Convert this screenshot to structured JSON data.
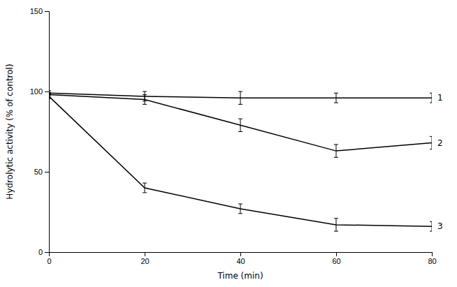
{
  "chart_data": {
    "type": "line",
    "xlabel": "Time (min)",
    "ylabel": "Hydrolytic activity (% of control)",
    "x": [
      0,
      20,
      40,
      60,
      80
    ],
    "xlim": [
      0,
      80
    ],
    "xticks": [
      0,
      20,
      40,
      60,
      80
    ],
    "ylim": [
      0,
      150
    ],
    "yticks": [
      0,
      50,
      100,
      150
    ],
    "color": "#000000",
    "series": [
      {
        "name": "1",
        "values": [
          99,
          97,
          96,
          96,
          96
        ],
        "errors": [
          1.5,
          3,
          4,
          3,
          3
        ]
      },
      {
        "name": "2",
        "values": [
          98,
          95,
          79,
          63,
          68
        ],
        "errors": [
          1.5,
          3,
          4,
          4,
          4
        ]
      },
      {
        "name": "3",
        "values": [
          97,
          40,
          27,
          17,
          16
        ],
        "errors": [
          1.5,
          3,
          3,
          4,
          3
        ]
      }
    ]
  }
}
